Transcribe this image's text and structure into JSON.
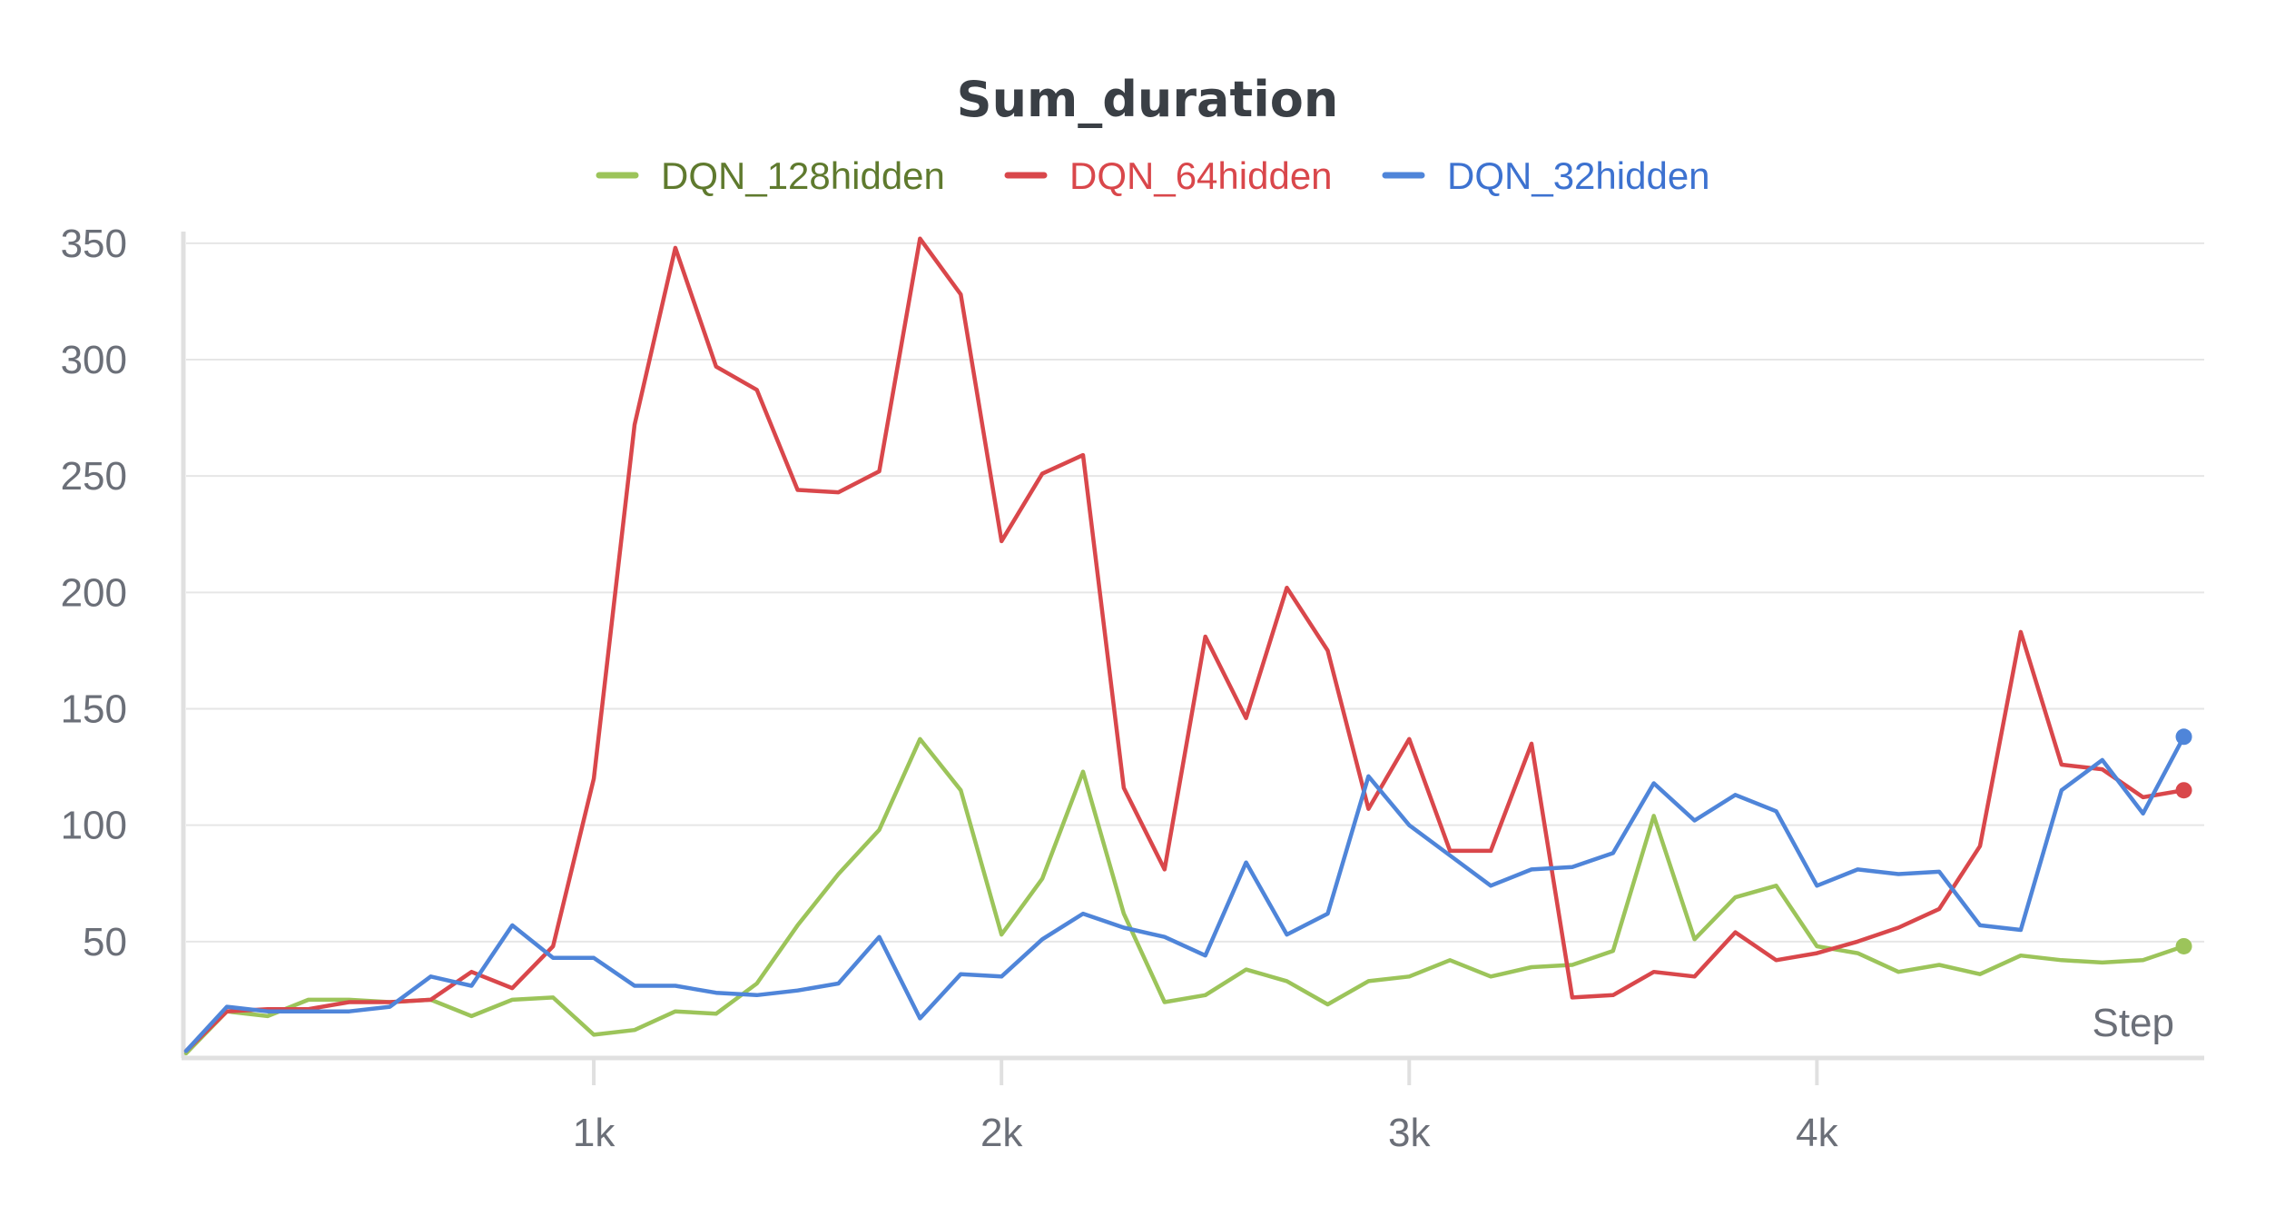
{
  "chart_data": {
    "type": "line",
    "title": "Sum_duration",
    "xlabel": "Step",
    "ylabel": "",
    "xlim": [
      0,
      4950
    ],
    "ylim": [
      0,
      355
    ],
    "yticks": [
      50,
      100,
      150,
      200,
      250,
      300,
      350
    ],
    "xticks": [
      1000,
      2000,
      3000,
      4000
    ],
    "xtick_labels": [
      "1k",
      "2k",
      "3k",
      "4k"
    ],
    "grid": true,
    "legend_position": "top-center",
    "x": [
      0,
      100,
      200,
      300,
      400,
      500,
      600,
      700,
      800,
      900,
      1000,
      1100,
      1200,
      1300,
      1400,
      1500,
      1600,
      1700,
      1800,
      1900,
      2000,
      2100,
      2200,
      2300,
      2400,
      2500,
      2600,
      2700,
      2800,
      2900,
      3000,
      3100,
      3200,
      3300,
      3400,
      3500,
      3600,
      3700,
      3800,
      3900,
      4000,
      4100,
      4200,
      4300,
      4400,
      4500,
      4600,
      4700,
      4800,
      4900
    ],
    "series": [
      {
        "name": "DQN_128hidden",
        "color": "#9cc45a",
        "legend_text_color": "#5f7a2e",
        "values": [
          2,
          20,
          18,
          25,
          25,
          24,
          25,
          18,
          25,
          26,
          10,
          12,
          20,
          19,
          32,
          57,
          79,
          98,
          137,
          115,
          53,
          77,
          123,
          62,
          24,
          27,
          38,
          33,
          23,
          33,
          35,
          42,
          35,
          39,
          40,
          46,
          104,
          51,
          69,
          74,
          48,
          45,
          37,
          40,
          36,
          44,
          42,
          41,
          42,
          48
        ]
      },
      {
        "name": "DQN_64hidden",
        "color": "#d9474b",
        "legend_text_color": "#d9474b",
        "values": [
          3,
          20,
          21,
          21,
          24,
          24,
          25,
          37,
          30,
          48,
          120,
          272,
          348,
          297,
          287,
          244,
          243,
          252,
          352,
          328,
          222,
          251,
          259,
          116,
          81,
          181,
          146,
          202,
          175,
          107,
          137,
          89,
          89,
          135,
          26,
          27,
          37,
          35,
          54,
          42,
          45,
          50,
          56,
          64,
          91,
          183,
          126,
          124,
          112,
          115
        ]
      },
      {
        "name": "DQN_32hidden",
        "color": "#4f85d9",
        "legend_text_color": "#3d72d0",
        "values": [
          3,
          22,
          20,
          20,
          20,
          22,
          35,
          31,
          57,
          43,
          43,
          31,
          31,
          28,
          27,
          29,
          32,
          52,
          17,
          36,
          35,
          51,
          62,
          56,
          52,
          44,
          84,
          53,
          62,
          121,
          100,
          87,
          74,
          81,
          82,
          88,
          118,
          102,
          113,
          106,
          74,
          81,
          79,
          80,
          57,
          55,
          115,
          128,
          105,
          138
        ]
      }
    ]
  }
}
